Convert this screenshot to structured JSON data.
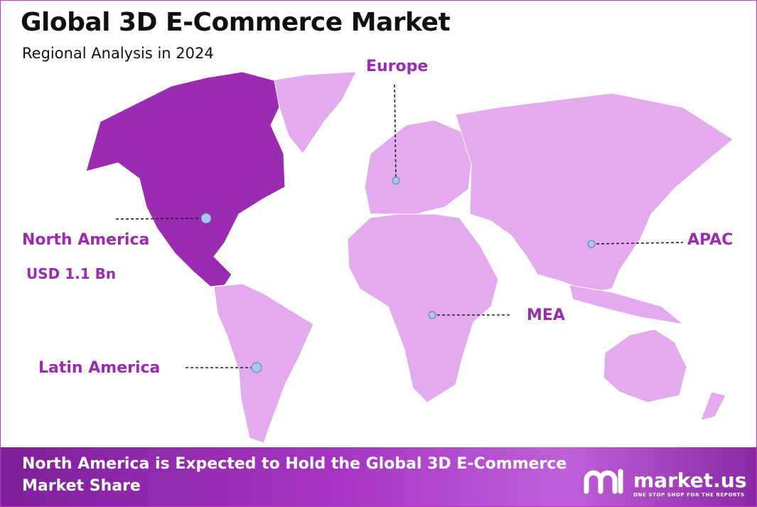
{
  "header": {
    "title": "Global 3D E-Commerce Market",
    "subtitle": "Regional Analysis in 2024"
  },
  "regions": [
    {
      "label": "North America",
      "value": "USD 1.1 Bn"
    },
    {
      "label": "Europe"
    },
    {
      "label": "APAC"
    },
    {
      "label": "MEA"
    },
    {
      "label": "Latin America"
    }
  ],
  "footer": {
    "text": "North America is Expected to Hold the Global 3D E-Commerce Market Share"
  },
  "logo": {
    "name": "market.us",
    "tagline": "ONE STOP SHOP FOR THE REPORTS"
  }
}
